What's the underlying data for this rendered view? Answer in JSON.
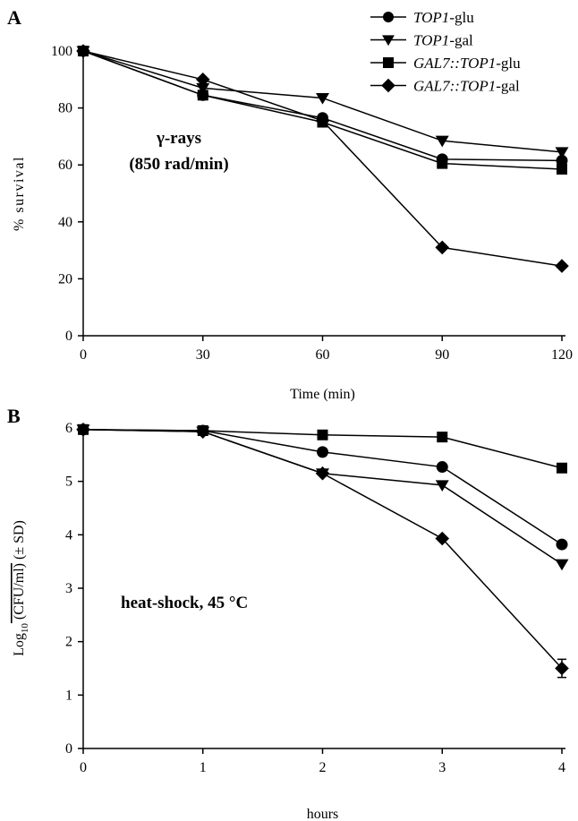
{
  "legend": [
    {
      "marker": "circle",
      "italic": "TOP1",
      "plain": "-glu"
    },
    {
      "marker": "triangle-down",
      "italic": "TOP1",
      "plain": "-gal"
    },
    {
      "marker": "square",
      "italic": "GAL7::TOP1",
      "plain": "-glu"
    },
    {
      "marker": "diamond",
      "italic": "GAL7::TOP1",
      "plain": "-gal"
    }
  ],
  "chart_data": [
    {
      "panel": "A",
      "type": "line",
      "annotation": [
        "γ-rays",
        "(850 rad/min)"
      ],
      "xlabel": "Time (min)",
      "ylabel": "% survival",
      "xlim": [
        0,
        120
      ],
      "ylim": [
        0,
        100
      ],
      "xticks": [
        0,
        30,
        60,
        90,
        120
      ],
      "yticks": [
        0,
        20,
        40,
        60,
        80,
        100
      ],
      "grid": false,
      "legend_position": "top-right",
      "x": [
        0,
        30,
        60,
        90,
        120
      ],
      "series": [
        {
          "name": "TOP1-glu",
          "marker": "circle",
          "values": [
            100,
            84.5,
            76.5,
            62,
            61.5
          ]
        },
        {
          "name": "TOP1-gal",
          "marker": "triangle-down",
          "values": [
            100,
            87,
            83.5,
            68.5,
            64.5
          ]
        },
        {
          "name": "GAL7::TOP1-glu",
          "marker": "square",
          "values": [
            100,
            84.5,
            75,
            60.5,
            58.5
          ]
        },
        {
          "name": "GAL7::TOP1-gal",
          "marker": "diamond",
          "values": [
            100,
            90,
            75.5,
            31,
            24.5
          ]
        }
      ]
    },
    {
      "panel": "B",
      "type": "line",
      "annotation": [
        "heat-shock, 45 °C"
      ],
      "xlabel": "hours",
      "ylabel": "Log10 (CFU/ml) (± SD)",
      "xlim": [
        0,
        4
      ],
      "ylim": [
        0,
        6
      ],
      "xticks": [
        0,
        1,
        2,
        3,
        4
      ],
      "yticks": [
        0,
        1,
        2,
        3,
        4,
        5,
        6
      ],
      "grid": false,
      "x": [
        0,
        1,
        2,
        3,
        4
      ],
      "series": [
        {
          "name": "TOP1-glu",
          "marker": "circle",
          "values": [
            5.97,
            5.95,
            5.55,
            5.27,
            3.82
          ]
        },
        {
          "name": "TOP1-gal",
          "marker": "triangle-down",
          "values": [
            5.97,
            5.93,
            5.15,
            4.93,
            3.45
          ]
        },
        {
          "name": "GAL7::TOP1-glu",
          "marker": "square",
          "values": [
            5.97,
            5.95,
            5.87,
            5.83,
            5.25
          ]
        },
        {
          "name": "GAL7::TOP1-gal",
          "marker": "diamond",
          "values": [
            5.97,
            5.93,
            5.15,
            3.93,
            1.5
          ]
        }
      ],
      "error_bars": {
        "series": "GAL7::TOP1-gal",
        "x": 4,
        "sd": 0.17
      }
    }
  ]
}
